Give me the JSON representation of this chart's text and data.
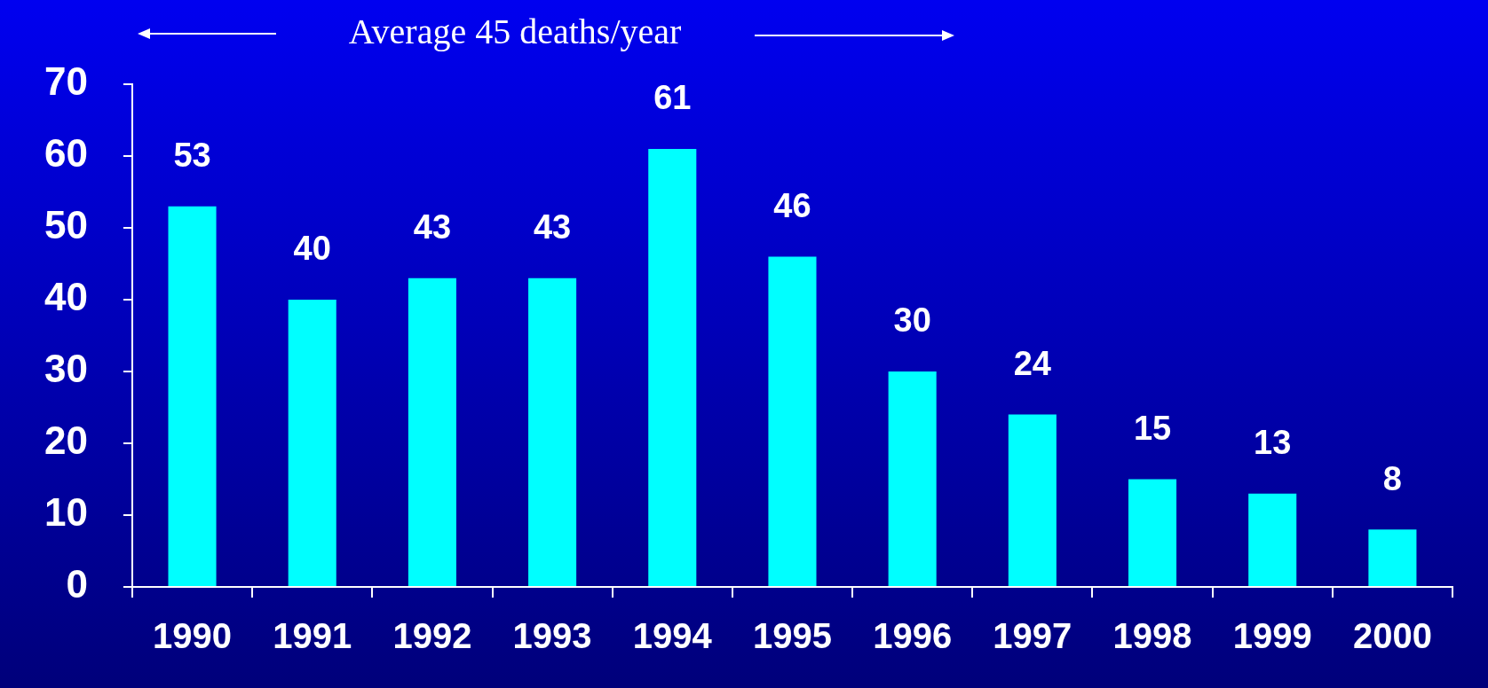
{
  "chart_data": {
    "type": "bar",
    "categories": [
      "1990",
      "1991",
      "1992",
      "1993",
      "1994",
      "1995",
      "1996",
      "1997",
      "1998",
      "1999",
      "2000"
    ],
    "values": [
      53,
      40,
      43,
      43,
      61,
      46,
      30,
      24,
      15,
      13,
      8
    ],
    "color": "#00ffff",
    "ylim": [
      0,
      70
    ],
    "yticks": [
      0,
      10,
      20,
      30,
      40,
      50,
      60,
      70
    ],
    "grid": false,
    "legend": false,
    "data_labels": true,
    "annotations": [
      "Average 45 deaths/year"
    ]
  }
}
